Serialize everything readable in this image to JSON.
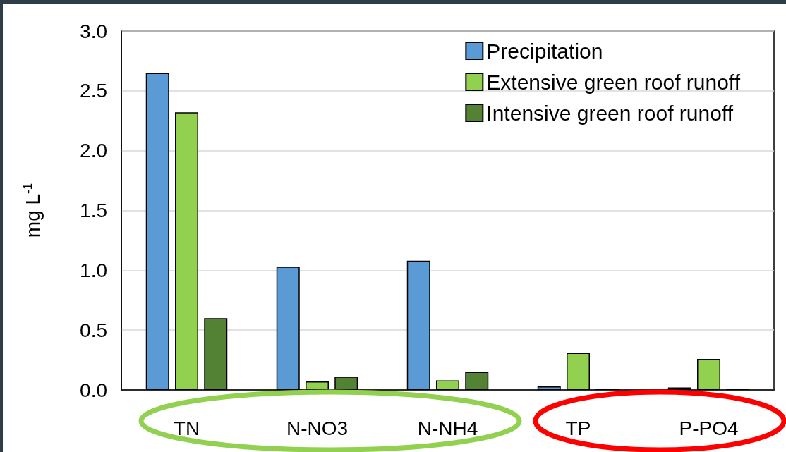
{
  "chart_data": {
    "type": "bar",
    "ylabel": "mg L$^{-1}$",
    "categories": [
      "TN",
      "N-NO3",
      "N-NH4",
      "TP",
      "P-PO4"
    ],
    "series": [
      {
        "name": "Precipitation",
        "color": "#5b9bd5",
        "values": [
          2.65,
          1.03,
          1.08,
          0.03,
          0.02
        ]
      },
      {
        "name": "Extensive green roof runoff",
        "color": "#92d050",
        "values": [
          2.32,
          0.07,
          0.08,
          0.31,
          0.26
        ]
      },
      {
        "name": "Intensive green roof runoff",
        "color": "#548235",
        "values": [
          0.6,
          0.11,
          0.15,
          0.01,
          0.01
        ]
      }
    ],
    "ylim": [
      0,
      3
    ],
    "yticks": [
      {
        "value": 0,
        "label": "0.0"
      },
      0.5,
      {
        "value": 1,
        "label": "1.0"
      },
      1.5,
      {
        "value": 2,
        "label": "2.0"
      },
      2.5,
      {
        "value": 3,
        "label": "3.0"
      }
    ],
    "grid": "y",
    "legend": "top right"
  }
}
